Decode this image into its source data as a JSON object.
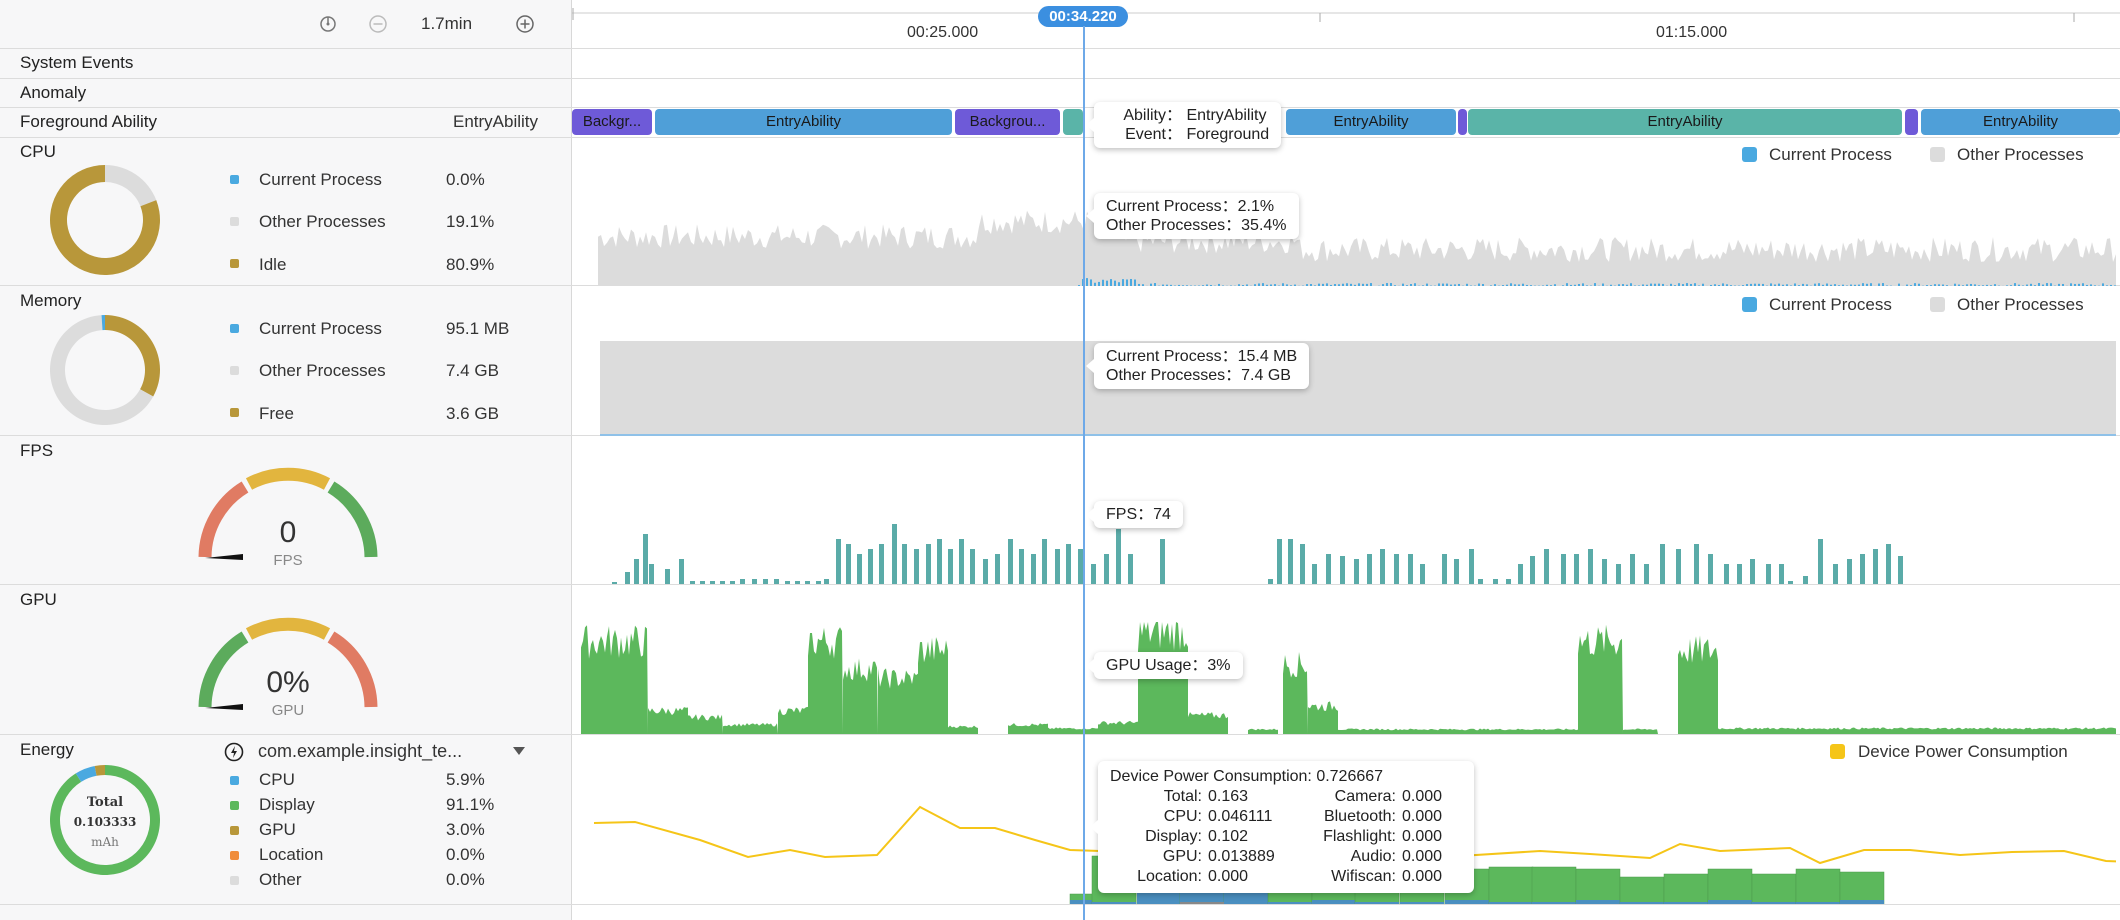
{
  "timeline": {
    "zoom_label": "1.7min",
    "cursor_time": "00:34.220",
    "ticks": [
      "00:25.000",
      "01:15.000"
    ]
  },
  "rows": {
    "system_events": "System Events",
    "anomaly": "Anomaly",
    "foreground_ability": "Foreground Ability",
    "foreground_ability_value": "EntryAbility",
    "cpu": "CPU",
    "memory": "Memory",
    "fps": "FPS",
    "gpu": "GPU",
    "energy": "Energy"
  },
  "segments": [
    {
      "label": "Backgr...",
      "color": "#6e5ad8"
    },
    {
      "label": "EntryAbility",
      "color": "#4f9fd8"
    },
    {
      "label": "Backgrou...",
      "color": "#6e5ad8"
    },
    {
      "label": "",
      "color": "#5ab4a8"
    },
    {
      "label": "EntryAbility",
      "color": "#4f9fd8"
    },
    {
      "label": "",
      "color": "#6e5ad8"
    },
    {
      "label": "EntryAbility",
      "color": "#5ab4a8"
    },
    {
      "label": "",
      "color": "#6e5ad8"
    },
    {
      "label": "EntryAbility",
      "color": "#4f9fd8"
    }
  ],
  "ability_tooltip": {
    "ability_key": "Ability：",
    "ability_val": "EntryAbility",
    "event_key": "Event：",
    "event_val": "Foreground"
  },
  "cpu": {
    "items": [
      {
        "label": "Current Process",
        "value": "0.0%",
        "color": "#4aa9e0"
      },
      {
        "label": "Other Processes",
        "value": "19.1%",
        "color": "#dcdcdc"
      },
      {
        "label": "Idle",
        "value": "80.9%",
        "color": "#b8973a"
      }
    ],
    "legend": [
      "Current Process",
      "Other Processes"
    ],
    "tooltip": {
      "line1": "Current Process：2.1%",
      "line2": "Other Processes：35.4%"
    },
    "donut_fractions": [
      0.0,
      0.191,
      0.809
    ]
  },
  "memory": {
    "items": [
      {
        "label": "Current Process",
        "value": "95.1 MB",
        "color": "#4aa9e0"
      },
      {
        "label": "Other Processes",
        "value": "7.4 GB",
        "color": "#dcdcdc"
      },
      {
        "label": "Free",
        "value": "3.6 GB",
        "color": "#b8973a"
      }
    ],
    "legend": [
      "Current Process",
      "Other Processes"
    ],
    "tooltip": {
      "line1": "Current Process：15.4 MB",
      "line2": "Other Processes：7.4 GB"
    },
    "donut_fractions": [
      0.01,
      0.66,
      0.33
    ]
  },
  "fps": {
    "gauge_value": "0",
    "gauge_unit": "FPS",
    "tooltip": "FPS：74"
  },
  "gpu": {
    "gauge_value": "0%",
    "gauge_unit": "GPU",
    "tooltip": "GPU Usage：3%"
  },
  "energy": {
    "app_name": "com.example.insight_te...",
    "donut_total_label": "Total",
    "donut_total_value": "0.103333",
    "donut_unit": "mAh",
    "items": [
      {
        "label": "CPU",
        "value": "5.9%",
        "color": "#4aa9e0"
      },
      {
        "label": "Display",
        "value": "91.1%",
        "color": "#5cb85c"
      },
      {
        "label": "GPU",
        "value": "3.0%",
        "color": "#b8973a"
      },
      {
        "label": "Location",
        "value": "0.0%",
        "color": "#f08c3a"
      },
      {
        "label": "Other",
        "value": "0.0%",
        "color": "#dcdcdc"
      }
    ],
    "legend": "Device Power Consumption",
    "tooltip": {
      "title": "Device Power Consumption: 0.726667",
      "rows": [
        {
          "k1": "Total:",
          "v1": "0.163",
          "k2": "Camera:",
          "v2": "0.000"
        },
        {
          "k1": "CPU:",
          "v1": "0.046111",
          "k2": "Bluetooth:",
          "v2": "0.000"
        },
        {
          "k1": "Display:",
          "v1": "0.102",
          "k2": "Flashlight:",
          "v2": "0.000"
        },
        {
          "k1": "GPU:",
          "v1": "0.013889",
          "k2": "Audio:",
          "v2": "0.000"
        },
        {
          "k1": "Location:",
          "v1": "0.000",
          "k2": "Wifiscan:",
          "v2": "0.000"
        }
      ]
    }
  },
  "colors": {
    "accent": "#4a90d9",
    "fps_bar": "#5aaba8",
    "gpu_fill": "#5cb85c",
    "cpu_fill": "#dcdcdc",
    "energy_line": "#f5c518"
  }
}
